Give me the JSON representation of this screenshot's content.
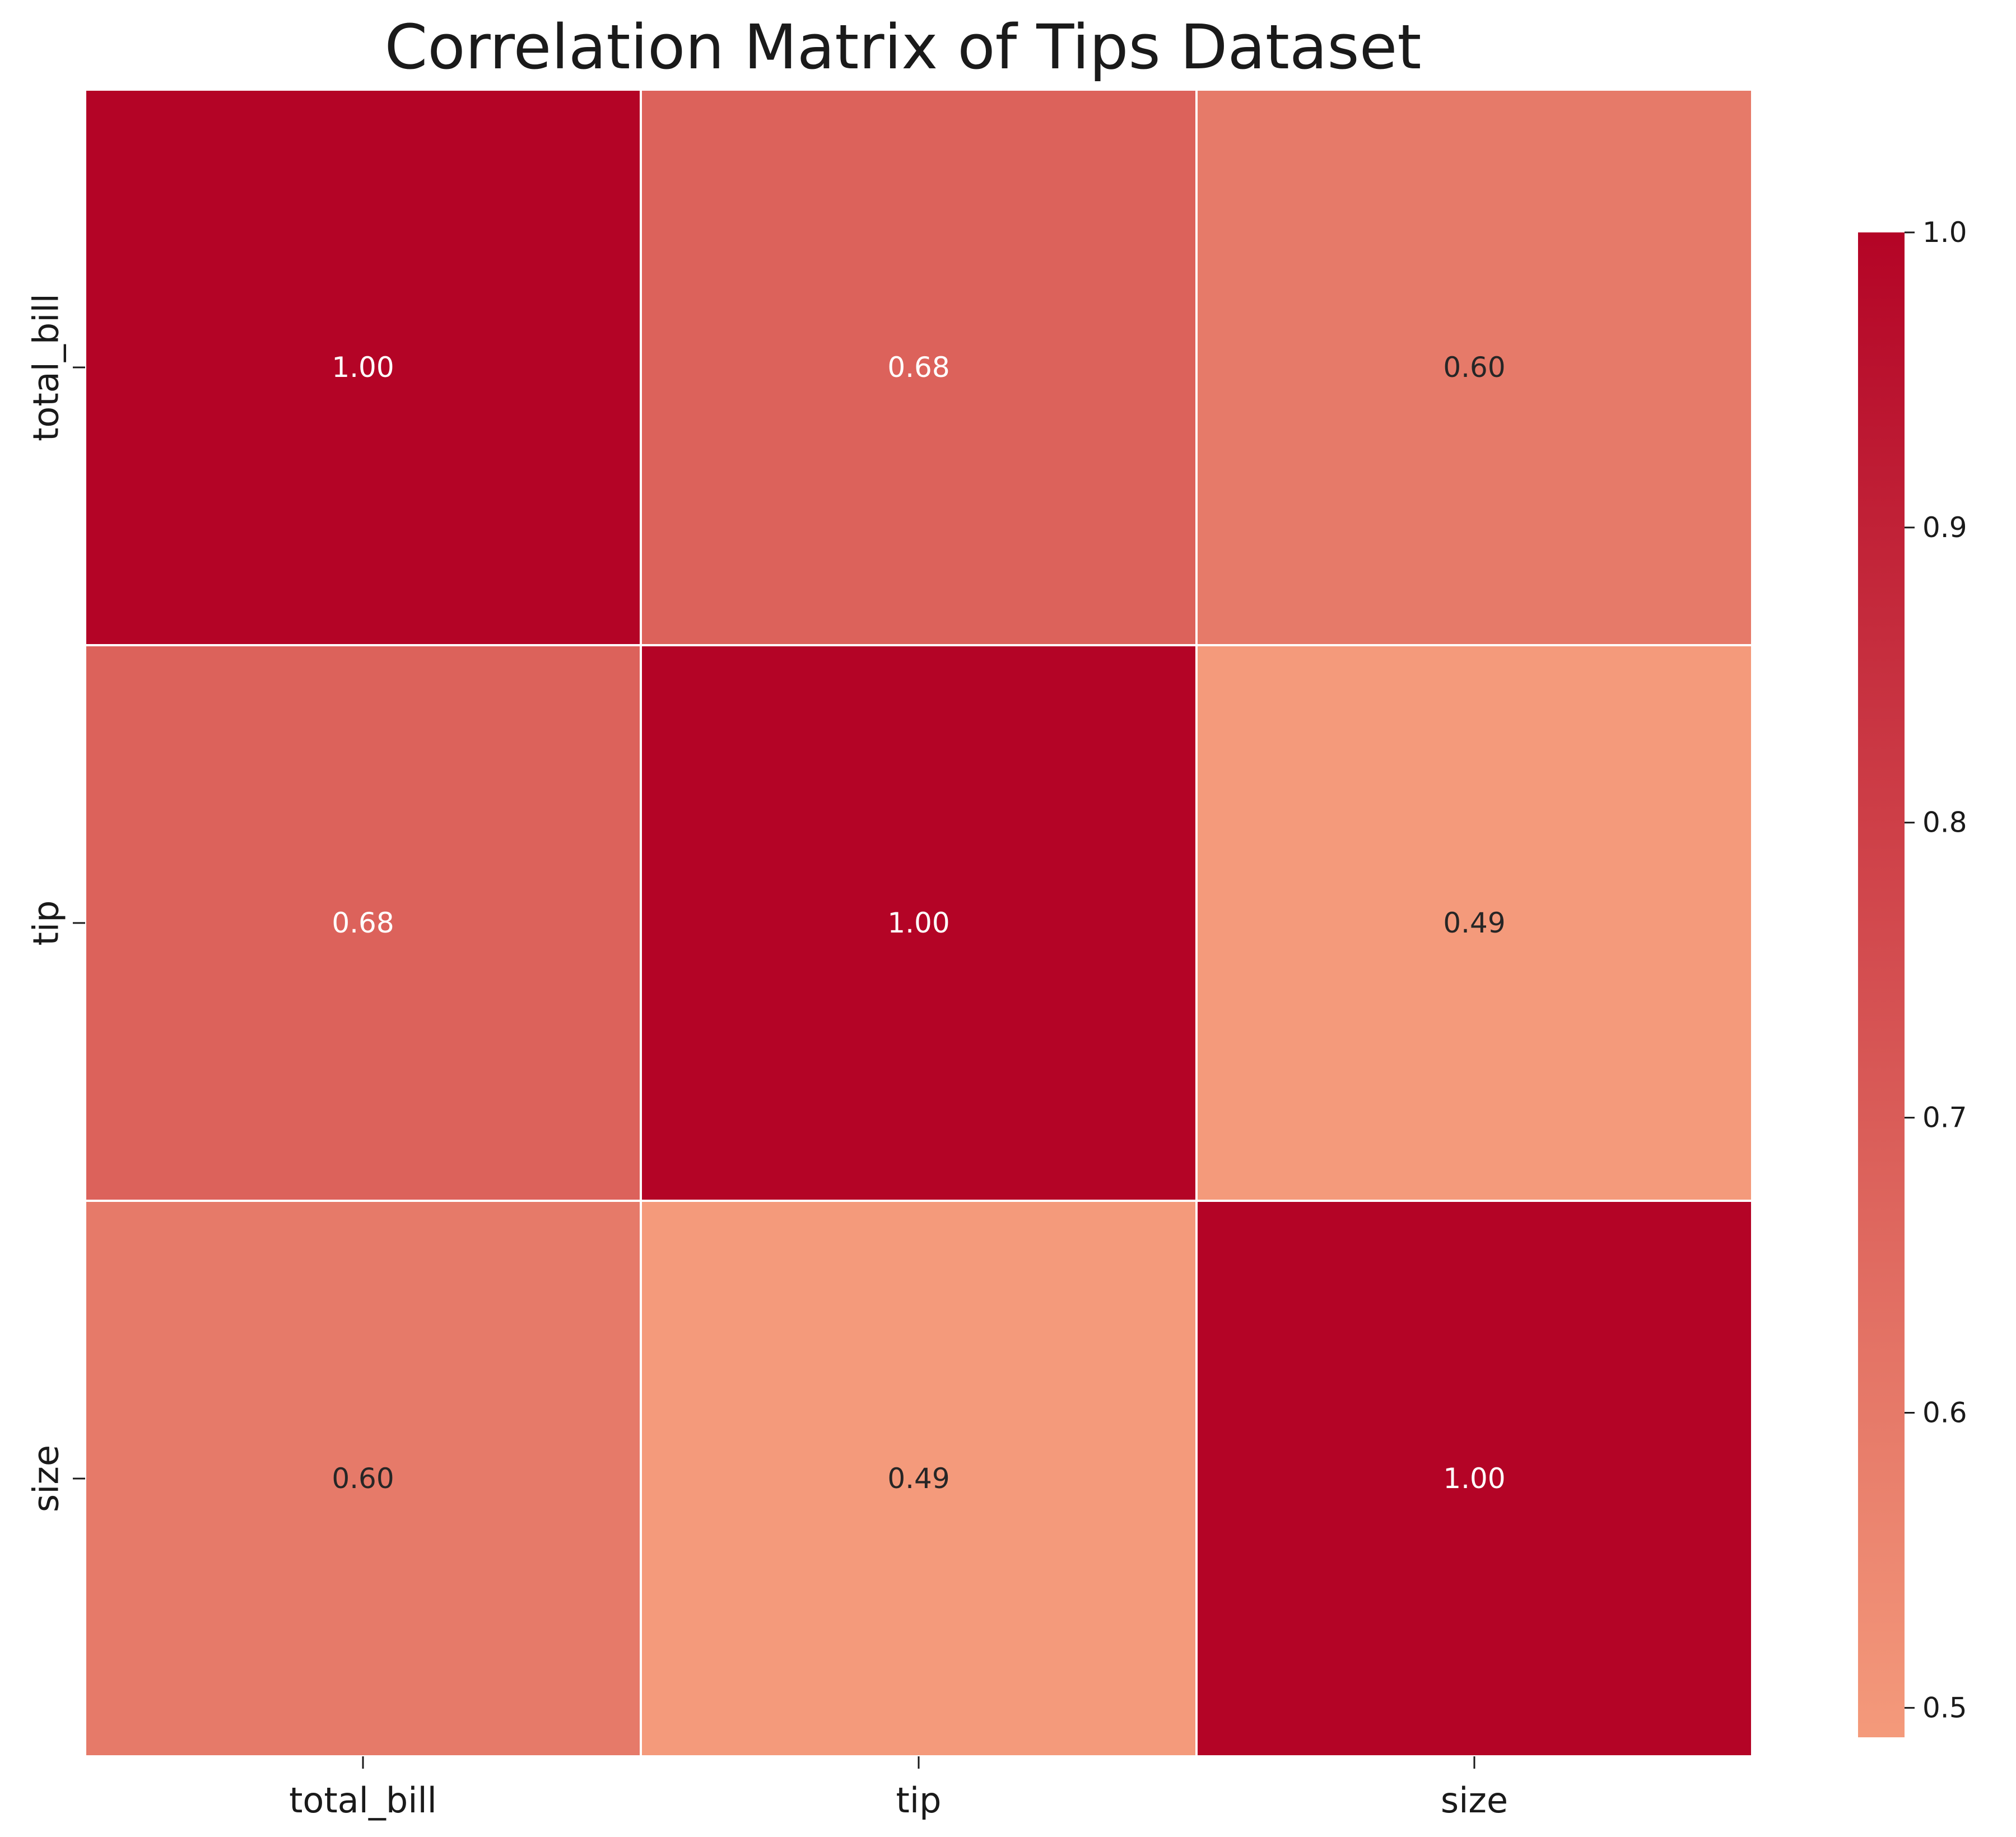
{
  "chart_data": {
    "type": "heatmap",
    "title": "Correlation Matrix of Tips Dataset",
    "row_labels": [
      "total_bill",
      "tip",
      "size"
    ],
    "col_labels": [
      "total_bill",
      "tip",
      "size"
    ],
    "values": [
      [
        1.0,
        0.68,
        0.6
      ],
      [
        0.68,
        1.0,
        0.49
      ],
      [
        0.6,
        0.49,
        1.0
      ]
    ],
    "value_format": "2 decimals",
    "colormap": "coolwarm",
    "colorbar": {
      "range": [
        0.49,
        1.0
      ],
      "ticks": [
        0.5,
        0.6,
        0.7,
        0.8,
        0.9,
        1.0
      ],
      "tick_labels": [
        "0.5",
        "0.6",
        "0.7",
        "0.8",
        "0.9",
        "1.0"
      ],
      "placement": "right"
    },
    "colors": {
      "low": "#f49a7b",
      "high": "#b40426",
      "cell_border": "#ffffff"
    }
  }
}
